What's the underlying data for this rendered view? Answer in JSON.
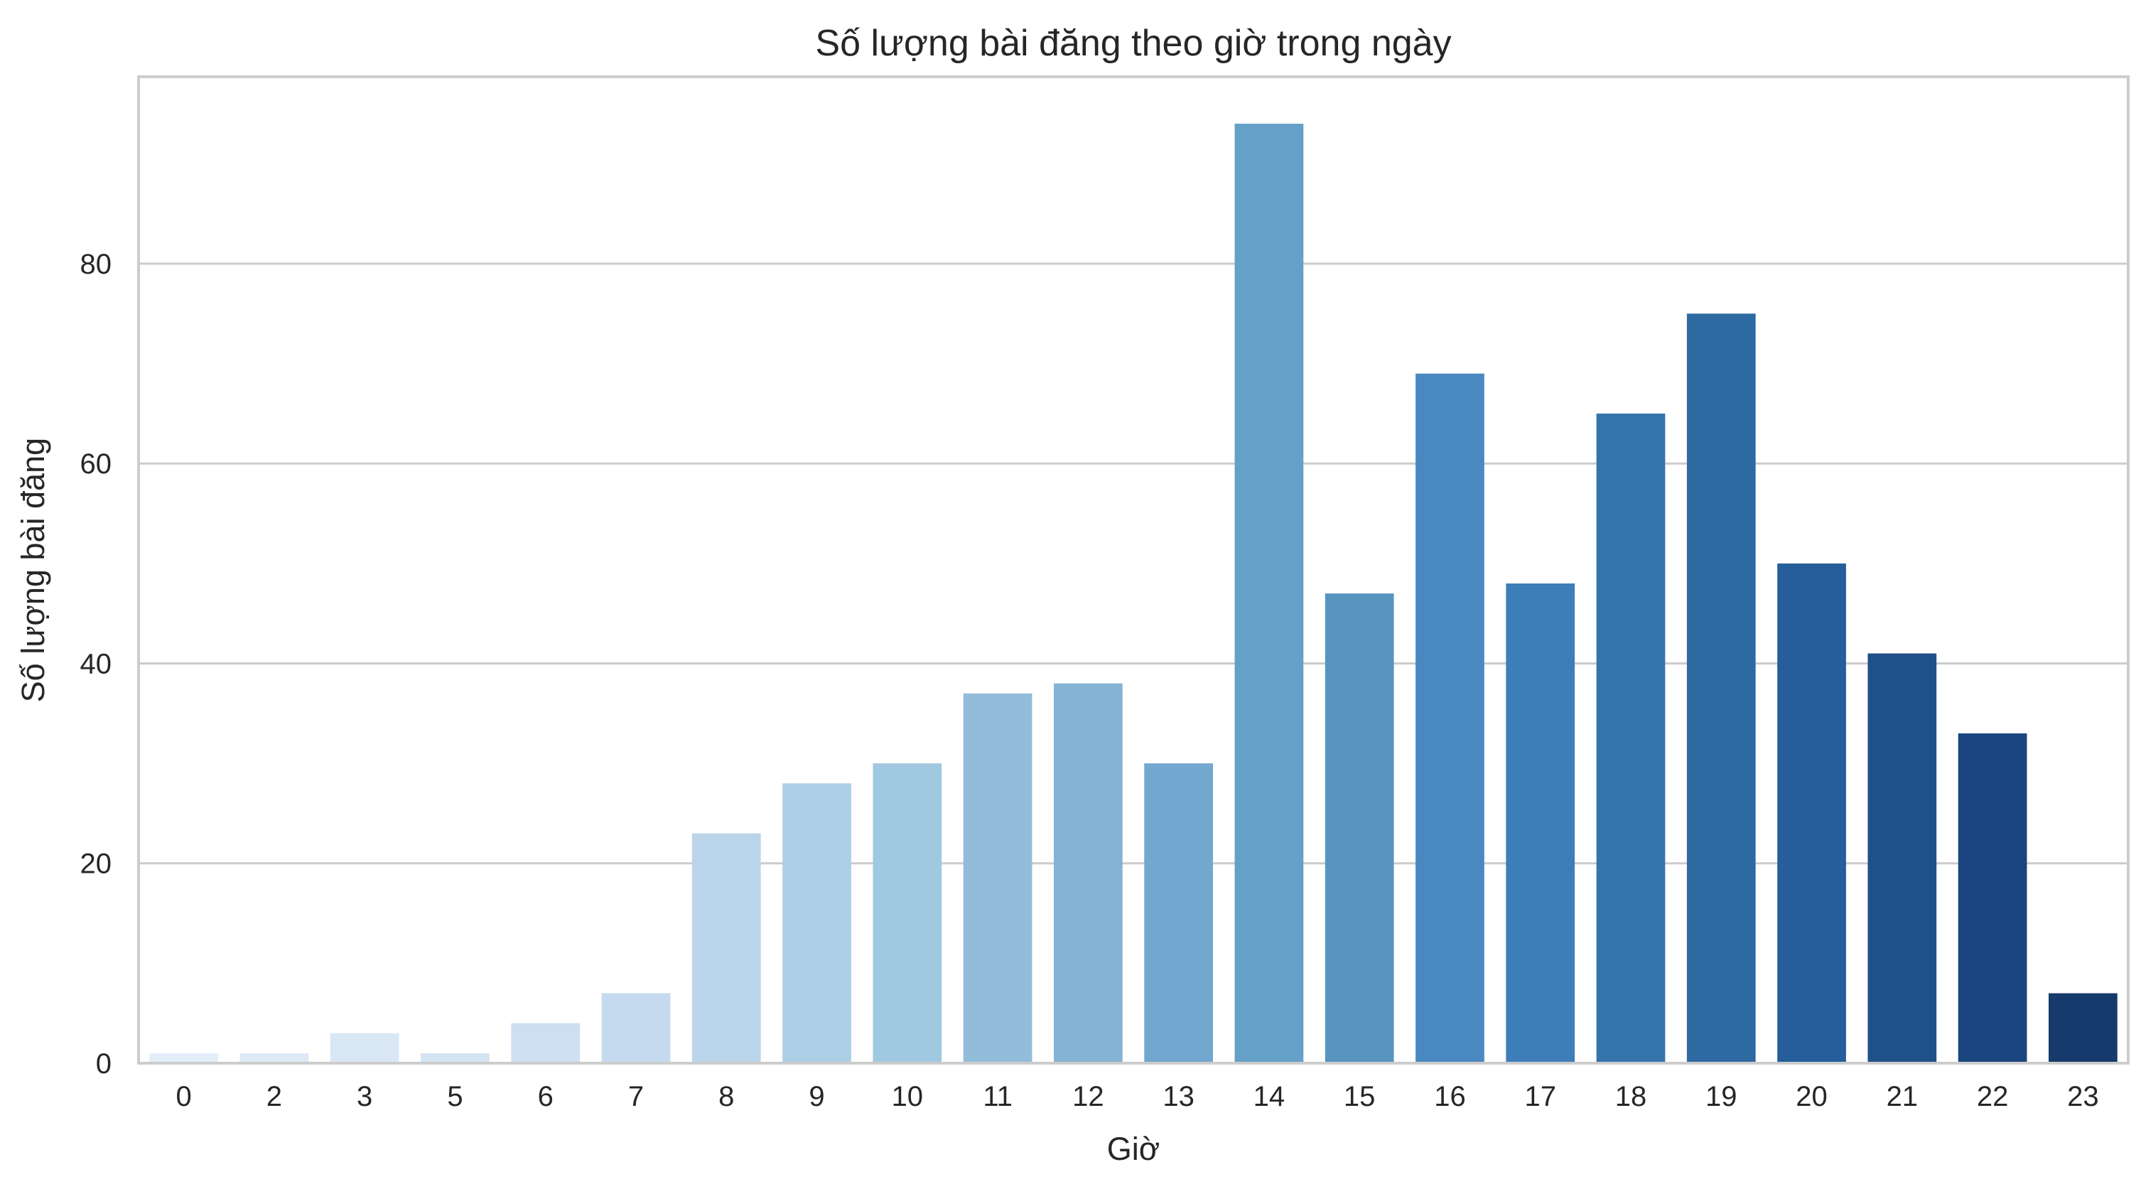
{
  "chart_data": {
    "type": "bar",
    "title": "Số lượng bài đăng theo giờ trong ngày",
    "xlabel": "Giờ",
    "ylabel": "Số lượng bài đăng",
    "categories": [
      "0",
      "2",
      "3",
      "5",
      "6",
      "7",
      "8",
      "9",
      "10",
      "11",
      "12",
      "13",
      "14",
      "15",
      "16",
      "17",
      "18",
      "19",
      "20",
      "21",
      "22",
      "23"
    ],
    "values": [
      1,
      1,
      3,
      1,
      4,
      7,
      23,
      28,
      30,
      37,
      38,
      30,
      94,
      47,
      69,
      48,
      65,
      75,
      50,
      41,
      33,
      7
    ],
    "ylim": [
      0,
      98.7
    ],
    "yticks": [
      0,
      20,
      40,
      60,
      80
    ],
    "grid": true,
    "colors": [
      "#e3eef9",
      "#dee9f6",
      "#d9e6f4",
      "#d4e3f2",
      "#cddff0",
      "#c5daee",
      "#bad5ea",
      "#adcfe5",
      "#a0c8e1",
      "#93bcda",
      "#85b3d4",
      "#72a7cf",
      "#64a0c8",
      "#5795c0",
      "#4a89bf",
      "#3d7eb8",
      "#3574aa",
      "#2e6aa2",
      "#255e9a",
      "#1f5089",
      "#1a457f",
      "#163a6b"
    ],
    "frame_color": "#cccccc",
    "grid_color": "#cccccc"
  }
}
